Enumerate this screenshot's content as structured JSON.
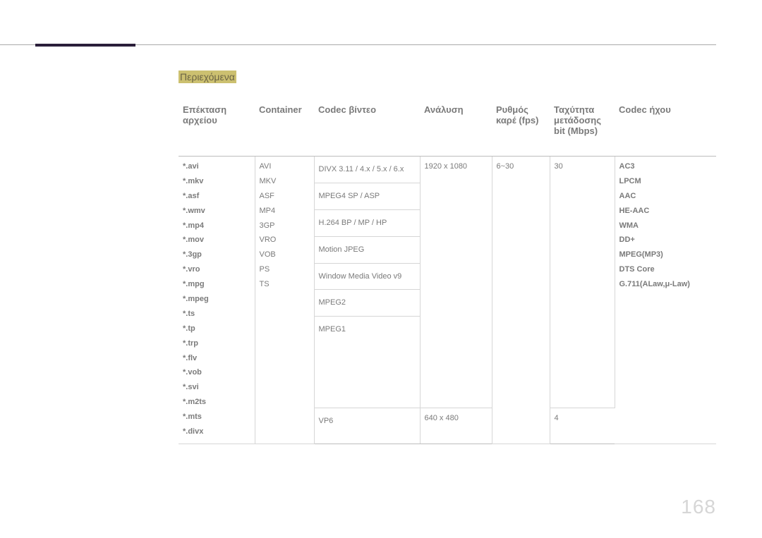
{
  "page_number": "168",
  "contents_label": "Περιεχόμενα",
  "headers": {
    "ext": "Επέκταση αρχείου",
    "container": "Container",
    "vcodec": "Codec βίντεο",
    "resolution": "Ανάλυση",
    "fps": "Ρυθμός καρέ (fps)",
    "bitrate": "Ταχύτητα μετάδοσης bit (Mbps)",
    "acodec": "Codec ήχου"
  },
  "extensions": [
    "*.avi",
    "*.mkv",
    "*.asf",
    "*.wmv",
    "*.mp4",
    "*.mov",
    "*.3gp",
    "*.vro",
    "*.mpg",
    "*.mpeg",
    "*.ts",
    "*.tp",
    "*.trp",
    "*.flv",
    "*.vob",
    "*.svi",
    "*.m2ts",
    "*.mts",
    "*.divx"
  ],
  "containers": [
    "AVI",
    "MKV",
    "ASF",
    "MP4",
    "3GP",
    "VRO",
    "VOB",
    "PS",
    "TS"
  ],
  "vcodecs_group1": [
    "DIVX 3.11 / 4.x / 5.x / 6.x",
    "MPEG4 SP / ASP",
    "H.264 BP / MP / HP",
    "Motion JPEG",
    "Window Media Video v9",
    "MPEG2",
    "MPEG1"
  ],
  "vcodec_group2": "VP6",
  "res_group1": "1920 x 1080",
  "res_group2": "640 x 480",
  "fps_group1": "6~30",
  "bitrate_group1": "30",
  "bitrate_group2": "4",
  "acodecs": [
    "AC3",
    "LPCM",
    "AAC",
    "HE-AAC",
    "WMA",
    "DD+",
    "MPEG(MP3)",
    "DTS Core",
    "G.711(ALaw,μ-Law)"
  ],
  "colors": {
    "accent_bar": "#2a1e3a",
    "label_bg": "#ccc070",
    "label_text": "#6b6444",
    "text_gray": "#7a7a7a",
    "rule_gray": "#bdbdbd",
    "cell_border": "#d6d6d6",
    "pagenum": "#d6d6d6"
  }
}
